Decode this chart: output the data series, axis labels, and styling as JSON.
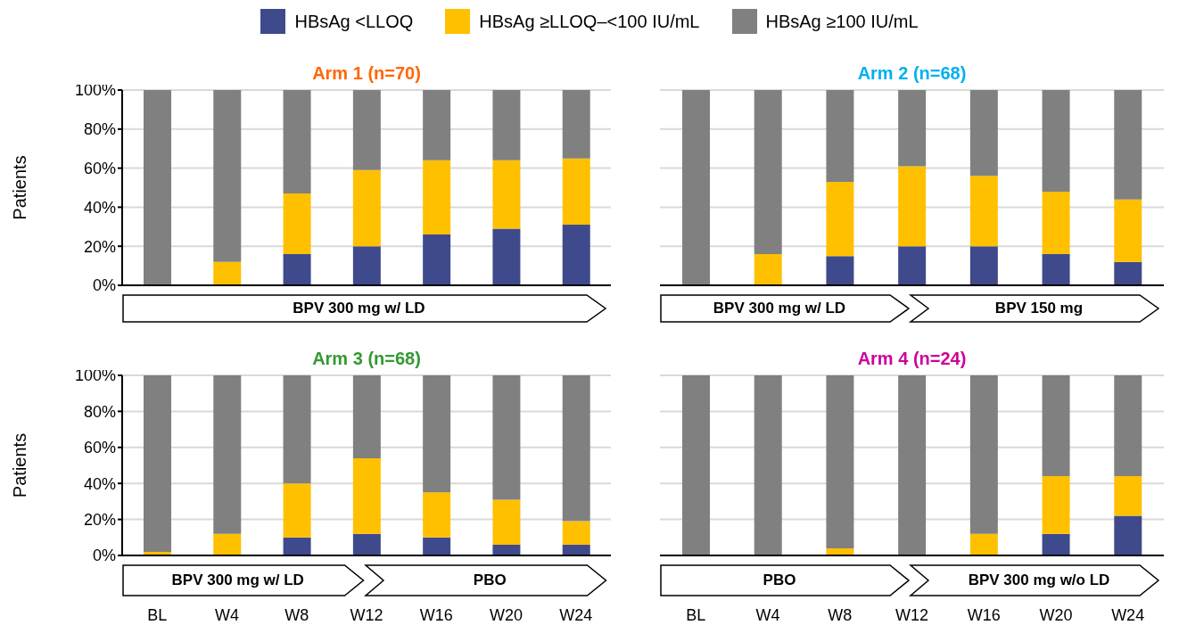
{
  "chart_data": [
    {
      "type": "bar",
      "title": "Arm 1 (n=70)",
      "ylabel": "Patients",
      "categories": [
        "BL",
        "W4",
        "W8",
        "W12",
        "W16",
        "W20",
        "W24"
      ],
      "stacked": true,
      "legend": "top",
      "grid": "y",
      "tick_labels": "y",
      "series": [
        {
          "name": "HBsAg <LLOQ",
          "color": "#3f4a8c",
          "values": [
            0,
            0,
            16,
            20,
            26,
            29,
            31
          ]
        },
        {
          "name": "HBsAg ≥LLOQ–<100 IU/mL",
          "color": "#ffc000",
          "values": [
            0,
            12,
            31,
            39,
            38,
            35,
            34
          ]
        },
        {
          "name": "HBsAg ≥100 IU/mL",
          "color": "#808080",
          "values": [
            100,
            88,
            53,
            41,
            36,
            36,
            35
          ]
        }
      ],
      "ylim": [
        0,
        100
      ],
      "yticks": [
        {
          "value": 0,
          "label": "0%"
        },
        {
          "value": 20,
          "label": "20%"
        },
        {
          "value": 40,
          "label": "40%"
        },
        {
          "value": 60,
          "label": "60%"
        },
        {
          "value": 80,
          "label": "80%"
        },
        {
          "value": 100,
          "label": "100%"
        }
      ],
      "annotations": [
        "BPV 300 mg w/ LD"
      ]
    },
    {
      "type": "bar",
      "title": "Arm 2 (n=68)",
      "categories": [
        "BL",
        "W4",
        "W8",
        "W12",
        "W16",
        "W20",
        "W24"
      ],
      "stacked": true,
      "grid": "y",
      "tick_labels": false,
      "series": [
        {
          "name": "HBsAg <LLOQ",
          "color": "#3f4a8c",
          "values": [
            0,
            0,
            15,
            20,
            20,
            16,
            12
          ]
        },
        {
          "name": "HBsAg ≥LLOQ–<100 IU/mL",
          "color": "#ffc000",
          "values": [
            0,
            16,
            38,
            41,
            36,
            32,
            32
          ]
        },
        {
          "name": "HBsAg ≥100 IU/mL",
          "color": "#808080",
          "values": [
            100,
            84,
            47,
            39,
            44,
            52,
            56
          ]
        }
      ],
      "ylim": [
        0,
        100
      ],
      "yticks": [
        0,
        20,
        40,
        60,
        80,
        100
      ],
      "annotations": [
        "BPV 300 mg w/ LD",
        "BPV 150 mg"
      ]
    },
    {
      "type": "bar",
      "title": "Arm 3 (n=68)",
      "ylabel": "Patients",
      "categories": [
        "BL",
        "W4",
        "W8",
        "W12",
        "W16",
        "W20",
        "W24"
      ],
      "stacked": true,
      "grid": "y",
      "series": [
        {
          "name": "HBsAg <LLOQ",
          "color": "#3f4a8c",
          "values": [
            0,
            0,
            10,
            12,
            10,
            6,
            6
          ]
        },
        {
          "name": "HBsAg ≥LLOQ–<100 IU/mL",
          "color": "#ffc000",
          "values": [
            2,
            12,
            30,
            42,
            25,
            25,
            13
          ]
        },
        {
          "name": "HBsAg ≥100 IU/mL",
          "color": "#808080",
          "values": [
            98,
            88,
            60,
            46,
            65,
            69,
            81
          ]
        }
      ],
      "ylim": [
        0,
        100
      ],
      "yticks": [
        {
          "value": 0,
          "label": "0%"
        },
        {
          "value": 20,
          "label": "20%"
        },
        {
          "value": 40,
          "label": "40%"
        },
        {
          "value": 60,
          "label": "60%"
        },
        {
          "value": 80,
          "label": "80%"
        },
        {
          "value": 100,
          "label": "100%"
        }
      ],
      "annotations": [
        "BPV 300 mg w/ LD",
        "PBO"
      ]
    },
    {
      "type": "bar",
      "title": "Arm 4 (n=24)",
      "categories": [
        "BL",
        "W4",
        "W8",
        "W12",
        "W16",
        "W20",
        "W24"
      ],
      "stacked": true,
      "grid": "y",
      "tick_labels": "x",
      "series": [
        {
          "name": "HBsAg <LLOQ",
          "color": "#3f4a8c",
          "values": [
            0,
            0,
            0,
            0,
            0,
            12,
            22
          ]
        },
        {
          "name": "HBsAg ≥LLOQ–<100 IU/mL",
          "color": "#ffc000",
          "values": [
            0,
            0,
            4,
            0,
            12,
            32,
            22
          ]
        },
        {
          "name": "HBsAg ≥100 IU/mL",
          "color": "#808080",
          "values": [
            100,
            100,
            96,
            100,
            88,
            56,
            56
          ]
        }
      ],
      "ylim": [
        0,
        100
      ],
      "yticks": [
        0,
        20,
        40,
        60,
        80,
        100
      ],
      "annotations": [
        "PBO",
        "BPV 300 mg w/o LD"
      ]
    }
  ]
}
